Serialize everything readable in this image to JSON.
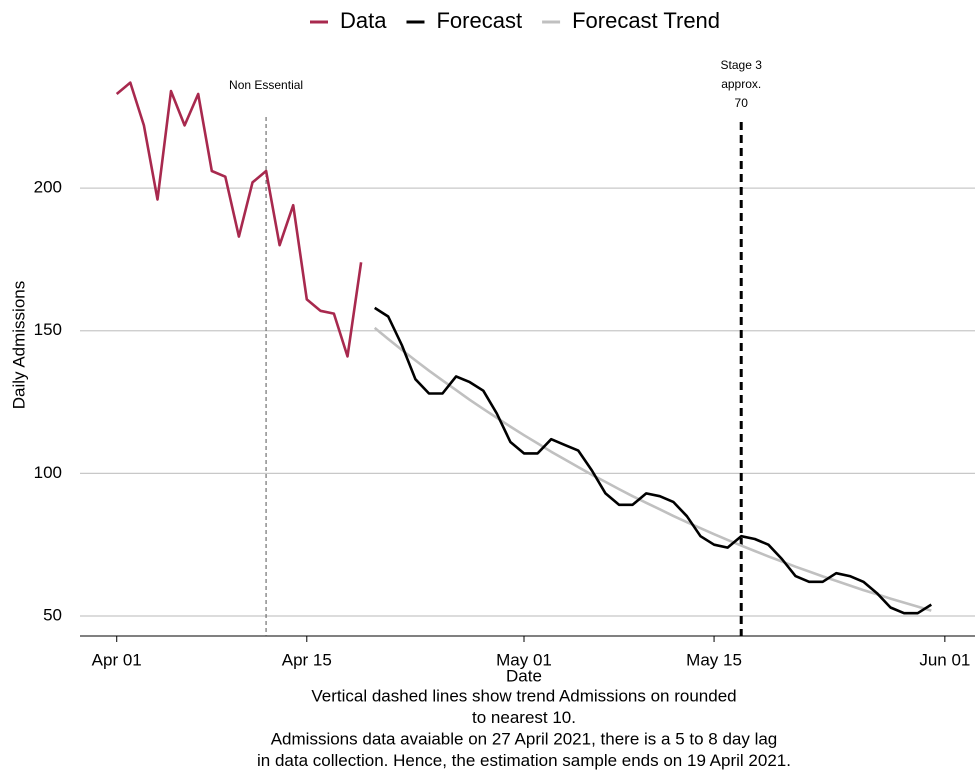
{
  "chart_data": {
    "type": "line",
    "x_label": "Date",
    "y_label": "Daily Admissions",
    "xlim": [
      "Mar 29",
      "Jun 03"
    ],
    "xticks": [
      "Apr 01",
      "Apr 15",
      "May 01",
      "May 15",
      "Jun 01"
    ],
    "ylim": [
      43,
      240
    ],
    "yticks": [
      50,
      100,
      150,
      200
    ],
    "grid": true,
    "legend": "top",
    "series": [
      {
        "name": "Data",
        "color": "#a8294e",
        "x": [
          "Apr 01",
          "Apr 02",
          "Apr 03",
          "Apr 04",
          "Apr 05",
          "Apr 06",
          "Apr 07",
          "Apr 08",
          "Apr 09",
          "Apr 10",
          "Apr 11",
          "Apr 12",
          "Apr 13",
          "Apr 14",
          "Apr 15",
          "Apr 16",
          "Apr 17",
          "Apr 18",
          "Apr 19"
        ],
        "values": [
          233,
          237,
          222,
          196,
          234,
          222,
          233,
          206,
          204,
          183,
          202,
          206,
          180,
          194,
          161,
          157,
          156,
          141,
          174
        ]
      },
      {
        "name": "Forecast",
        "color": "#000000",
        "x": [
          "Apr 20",
          "Apr 21",
          "Apr 22",
          "Apr 23",
          "Apr 24",
          "Apr 25",
          "Apr 26",
          "Apr 27",
          "Apr 28",
          "Apr 29",
          "Apr 30",
          "May 01",
          "May 02",
          "May 03",
          "May 04",
          "May 05",
          "May 06",
          "May 07",
          "May 08",
          "May 09",
          "May 10",
          "May 11",
          "May 12",
          "May 13",
          "May 14",
          "May 15",
          "May 16",
          "May 17",
          "May 18",
          "May 19",
          "May 20",
          "May 21",
          "May 22",
          "May 23",
          "May 24",
          "May 25",
          "May 26",
          "May 27",
          "May 28",
          "May 29",
          "May 30",
          "May 31"
        ],
        "values": [
          158,
          155,
          145,
          133,
          128,
          128,
          134,
          132,
          129,
          121,
          111,
          107,
          107,
          112,
          110,
          108,
          101,
          93,
          89,
          89,
          93,
          92,
          90,
          85,
          78,
          75,
          74,
          78,
          77,
          75,
          70,
          64,
          62,
          62,
          65,
          64,
          62,
          58,
          53,
          51,
          51,
          54
        ]
      },
      {
        "name": "Forecast Trend",
        "color": "#c0c0c0",
        "x": [
          "Apr 20",
          "Apr 21",
          "Apr 22",
          "Apr 23",
          "Apr 24",
          "Apr 25",
          "Apr 26",
          "Apr 27",
          "Apr 28",
          "Apr 29",
          "Apr 30",
          "May 01",
          "May 02",
          "May 03",
          "May 04",
          "May 05",
          "May 06",
          "May 07",
          "May 08",
          "May 09",
          "May 10",
          "May 11",
          "May 12",
          "May 13",
          "May 14",
          "May 15",
          "May 16",
          "May 17",
          "May 18",
          "May 19",
          "May 20",
          "May 21",
          "May 22",
          "May 23",
          "May 24",
          "May 25",
          "May 26",
          "May 27",
          "May 28",
          "May 29",
          "May 30",
          "May 31"
        ],
        "values": [
          151,
          147.1,
          143.3,
          139.6,
          136.0,
          132.6,
          129.2,
          125.8,
          122.6,
          119.5,
          116.4,
          113.4,
          110.5,
          107.6,
          104.9,
          102.2,
          99.5,
          97.0,
          94.5,
          92.0,
          89.7,
          87.4,
          85.1,
          82.9,
          80.8,
          78.7,
          76.7,
          74.7,
          72.8,
          70.9,
          69.1,
          67.3,
          65.6,
          63.9,
          62.3,
          60.7,
          59.1,
          57.6,
          56.1,
          54.7,
          53.3,
          51.9
        ]
      }
    ],
    "annotations": [
      {
        "x": "Apr 12",
        "label": [
          "Non Essential"
        ]
      },
      {
        "x": "May 17",
        "label": [
          "Stage 3",
          "approx.",
          "70"
        ]
      }
    ],
    "caption": [
      "Vertical dashed lines show trend Admissions on rounded",
      "to nearest 10.",
      "Admissions data avaiable on 27 April 2021, there is a 5 to 8 day lag",
      "in data collection. Hence, the estimation sample ends on 19 April 2021."
    ]
  }
}
